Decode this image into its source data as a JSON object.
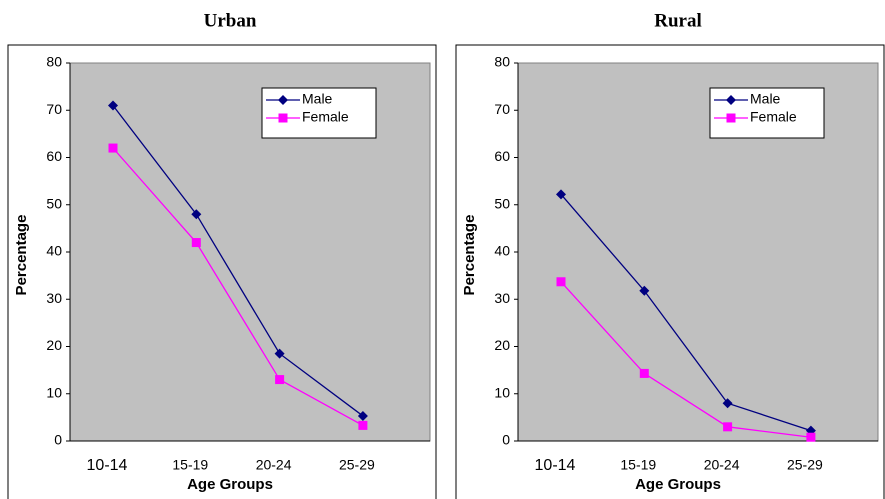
{
  "chart_data": [
    {
      "type": "line",
      "title": "Urban",
      "x_label": "Age Groups",
      "y_label": "Percentage",
      "categories": [
        "10-14",
        "15-19",
        "20-24",
        "25-29"
      ],
      "series": [
        {
          "name": "Male",
          "color": "#000080",
          "marker": "diamond",
          "values": [
            71,
            48,
            18.5,
            5.3
          ]
        },
        {
          "name": "Female",
          "color": "#ff00ff",
          "marker": "square",
          "values": [
            62,
            42,
            13,
            3.3
          ]
        }
      ],
      "ylim": [
        0,
        80
      ],
      "yticks": [
        0,
        10,
        20,
        30,
        40,
        50,
        60,
        70,
        80
      ],
      "grid": false,
      "legend": "upper right"
    },
    {
      "type": "line",
      "title": "Rural",
      "x_label": "Age Groups",
      "y_label": "Percentage",
      "categories": [
        "10-14",
        "15-19",
        "20-24",
        "25-29"
      ],
      "series": [
        {
          "name": "Male",
          "color": "#000080",
          "marker": "diamond",
          "values": [
            52.2,
            31.8,
            8,
            2.2
          ]
        },
        {
          "name": "Female",
          "color": "#ff00ff",
          "marker": "square",
          "values": [
            33.7,
            14.3,
            3,
            0.8
          ]
        }
      ],
      "ylim": [
        0,
        80
      ],
      "yticks": [
        0,
        10,
        20,
        30,
        40,
        50,
        60,
        70,
        80
      ],
      "grid": false,
      "legend": "upper right"
    }
  ]
}
